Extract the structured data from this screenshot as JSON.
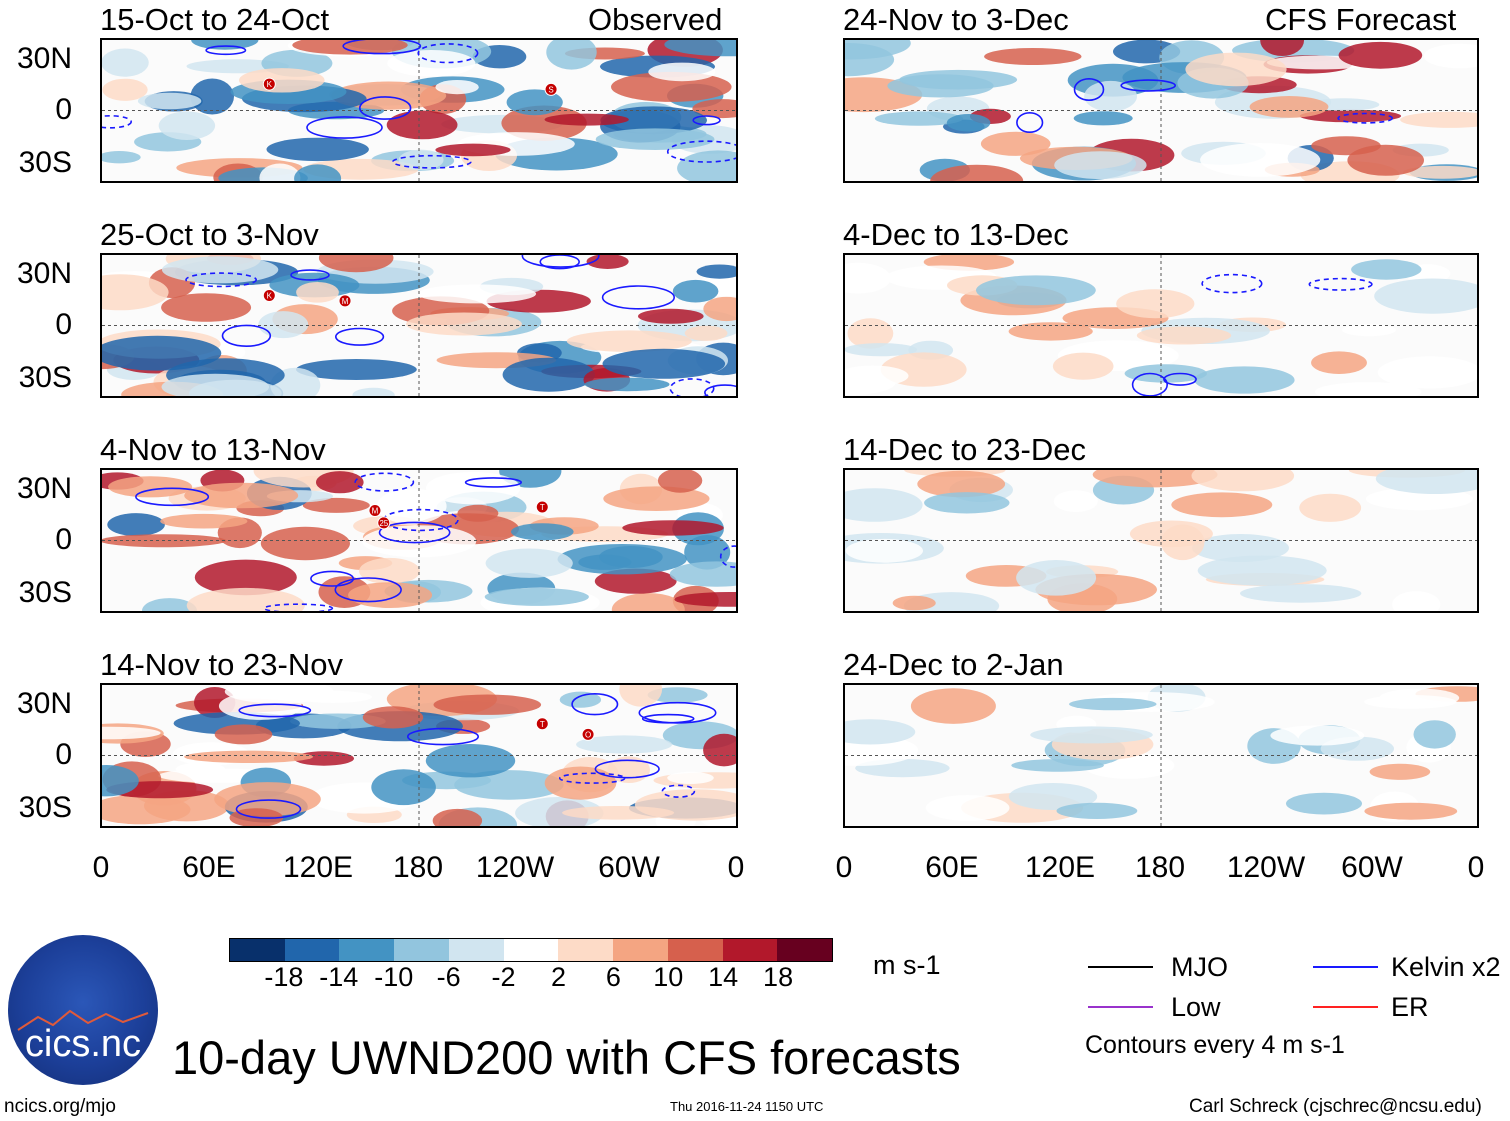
{
  "panels": [
    {
      "title": "15-Oct to 24-Oct",
      "label": "Observed"
    },
    {
      "title": "24-Nov to 3-Dec",
      "label": "CFS Forecast"
    },
    {
      "title": "25-Oct to 3-Nov",
      "label": ""
    },
    {
      "title": "4-Dec to 13-Dec",
      "label": ""
    },
    {
      "title": "4-Nov to 13-Nov",
      "label": ""
    },
    {
      "title": "14-Dec to 23-Dec",
      "label": ""
    },
    {
      "title": "14-Nov to 23-Nov",
      "label": ""
    },
    {
      "title": "24-Dec to 2-Jan",
      "label": ""
    }
  ],
  "lat_labels": [
    "30N",
    "0",
    "30S"
  ],
  "lon_labels": [
    "0",
    "60E",
    "120E",
    "180",
    "120W",
    "60W",
    "0"
  ],
  "chart_data": {
    "type": "heatmap",
    "title": "10-day UWND200 with CFS forecasts",
    "variable": "UWND200",
    "units": "m s-1",
    "lat_range": [
      -40,
      40
    ],
    "lon_range": [
      0,
      360
    ],
    "colorbar_levels": [
      -18,
      -14,
      -10,
      -6,
      -2,
      2,
      6,
      10,
      14,
      18
    ],
    "colorbar_labels": [
      "-18",
      "-14",
      "-10",
      "-6",
      "-2",
      "2",
      "6",
      "10",
      "14",
      "18"
    ],
    "colorbar_colors": [
      "#08306b",
      "#2166ac",
      "#4393c3",
      "#92c5de",
      "#d1e5f0",
      "#ffffff",
      "#fddbc7",
      "#f4a582",
      "#d6604d",
      "#b2182b",
      "#67001f"
    ],
    "contour_interval": "Contours every 4 m s-1",
    "legend": [
      {
        "name": "MJO",
        "color": "#000000"
      },
      {
        "name": "Kelvin x2",
        "color": "#1a1aff"
      },
      {
        "name": "Low",
        "color": "#9933cc"
      },
      {
        "name": "ER",
        "color": "#ff2222"
      }
    ],
    "storm_markers": [
      {
        "panel": 0,
        "letter": "K",
        "lon": 95,
        "lat": 15
      },
      {
        "panel": 0,
        "letter": "S",
        "lon": 255,
        "lat": 12
      },
      {
        "panel": 2,
        "letter": "K",
        "lon": 95,
        "lat": 17
      },
      {
        "panel": 2,
        "letter": "M",
        "lon": 138,
        "lat": 14
      },
      {
        "panel": 4,
        "letter": "M",
        "lon": 155,
        "lat": 17
      },
      {
        "panel": 4,
        "letter": "25",
        "lon": 160,
        "lat": 10
      },
      {
        "panel": 4,
        "letter": "T",
        "lon": 250,
        "lat": 19
      },
      {
        "panel": 6,
        "letter": "T",
        "lon": 250,
        "lat": 18
      },
      {
        "panel": 6,
        "letter": "O",
        "lon": 276,
        "lat": 12
      }
    ]
  },
  "footer": {
    "logo_text": "cics.nc",
    "site": "ncics.org/mjo",
    "timestamp": "Thu 2016-11-24 1150 UTC",
    "author": "Carl Schreck (cjschrec@ncsu.edu)"
  }
}
